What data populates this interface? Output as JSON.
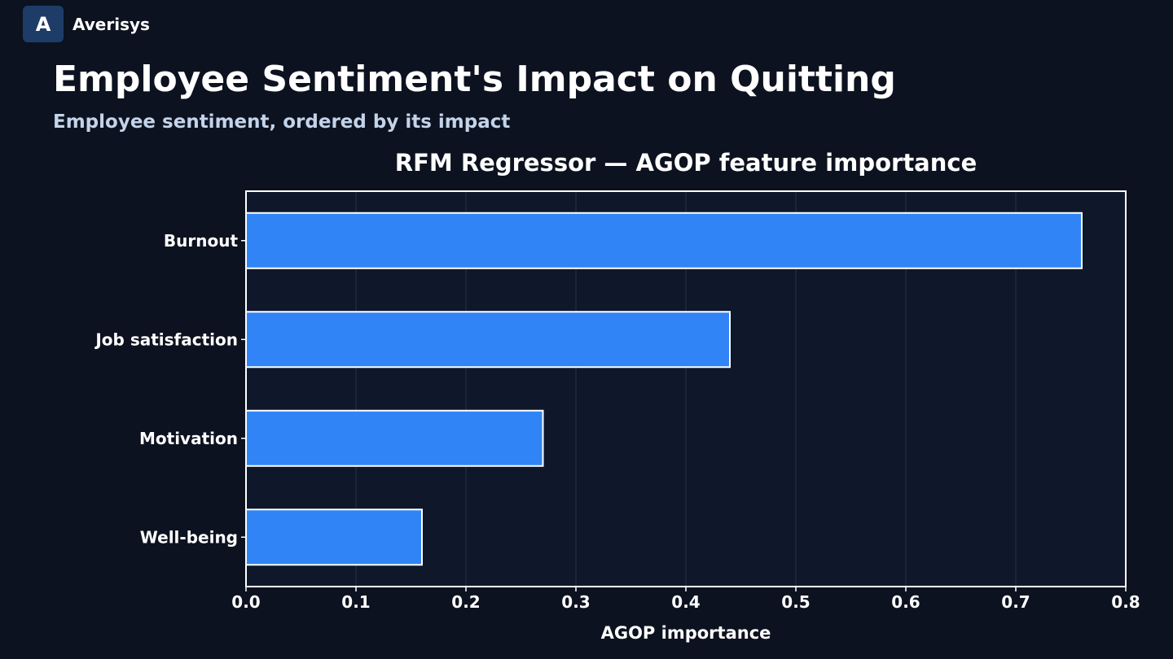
{
  "brand": {
    "logo_letter": "A",
    "name": "Averisys"
  },
  "header": {
    "title": "Employee Sentiment's Impact on Quitting",
    "subtitle": "Employee sentiment, ordered by its impact"
  },
  "colors": {
    "background": "#0c121f",
    "plot_background": "#0f182a",
    "bar": "#3184f6",
    "bar_edge": "#ffffff",
    "text": "#ffffff",
    "subtitle": "#c3d3ea",
    "grid": "#243246",
    "logo_badge": "#1e3c68"
  },
  "chart_data": {
    "type": "bar",
    "orientation": "horizontal",
    "title": "RFM Regressor — AGOP feature importance",
    "xlabel": "AGOP importance",
    "ylabel": "",
    "categories": [
      "Burnout",
      "Job satisfaction",
      "Motivation",
      "Well-being"
    ],
    "values": [
      0.76,
      0.44,
      0.27,
      0.16
    ],
    "xlim": [
      0,
      0.8
    ],
    "xticks": [
      "0.0",
      "0.1",
      "0.2",
      "0.3",
      "0.4",
      "0.5",
      "0.6",
      "0.7",
      "0.8"
    ],
    "grid": "vertical"
  }
}
